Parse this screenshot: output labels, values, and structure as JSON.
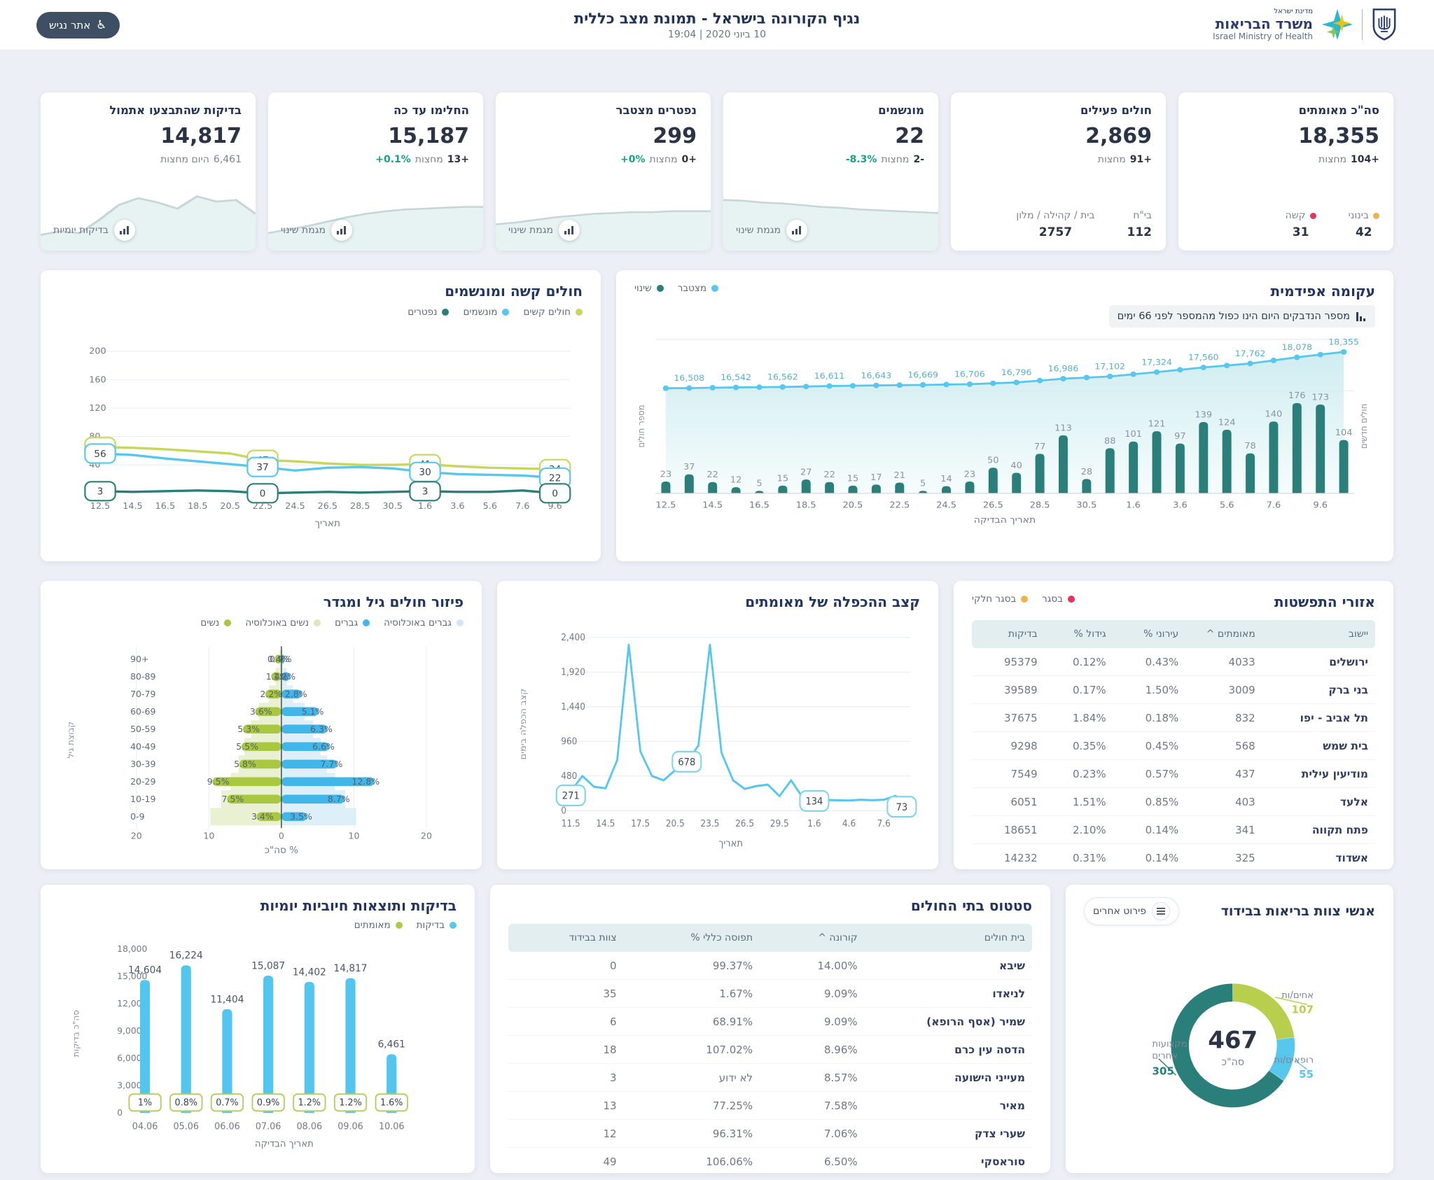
{
  "colors": {
    "bg": "#eceff5",
    "navy": "#21355e",
    "text_dark": "#2b3445",
    "text_gray": "#7b8494",
    "green_pos": "#12a385",
    "accent_teal": "#2a7f7a",
    "accent_blue": "#57c7ee",
    "accent_green": "#aec94a",
    "dot_orange": "#eeb44c",
    "dot_red": "#e8315b",
    "table_head": "#e3eef0"
  },
  "header": {
    "title": "נגיף הקורונה בישראל - תמונת מצב כללית",
    "datetime": "10 ביוני 2020 | 19:04",
    "accessibility_button": "אתר נגיש",
    "logo": {
      "line1": "מדינת ישראל",
      "line2": "משרד הבריאות",
      "line3": "Israel Ministry of Health"
    }
  },
  "stat_cards": [
    {
      "title": "סה\"כ מאומתים",
      "value": "18,355",
      "delta": {
        "count": "+104",
        "word": "מחצות"
      },
      "footer": [
        {
          "label": "בינוני",
          "value": "42",
          "dot": "#eeb44c"
        },
        {
          "label": "קשה",
          "value": "31",
          "dot": "#e8315b"
        }
      ]
    },
    {
      "title": "חולים פעילים",
      "value": "2,869",
      "delta": {
        "count": "+91",
        "word": "מחצות"
      },
      "footer": [
        {
          "label": "בי\"ח",
          "value": "112"
        },
        {
          "label": "בית / קהילה / מלון",
          "value": "2757"
        }
      ]
    },
    {
      "title": "מונשמים",
      "value": "22",
      "delta": {
        "count": "-2",
        "word": "מחצות",
        "pct": "-8.3%"
      },
      "link": "מגמת שינוי",
      "spark": [
        58,
        57,
        55,
        54,
        52,
        50,
        49,
        47,
        46,
        45,
        44,
        43
      ]
    },
    {
      "title": "נפטרים מצטבר",
      "value": "299",
      "delta": {
        "count": "+0",
        "word": "מחצות",
        "pct": "+0%"
      },
      "link": "מגמת שינוי",
      "spark": [
        30,
        32,
        35,
        38,
        40,
        42,
        43,
        44,
        44,
        45,
        45,
        45
      ]
    },
    {
      "title": "החלימו עד כה",
      "value": "15,187",
      "delta": {
        "count": "+13",
        "word": "מחצות",
        "pct": "+0.1%"
      },
      "link": "מגמת שינוי",
      "spark": [
        20,
        24,
        28,
        33,
        38,
        42,
        45,
        47,
        48,
        49,
        50,
        50
      ]
    },
    {
      "title": "בדיקות שהתבצעו אתמול",
      "value": "14,817",
      "delta": {
        "count": "6,461",
        "word": "היום מחצות"
      },
      "link": "בדיקות יומיות",
      "spark": [
        18,
        22,
        20,
        35,
        52,
        60,
        55,
        48,
        62,
        56,
        58,
        42
      ]
    }
  ],
  "chart_data": {
    "epi": {
      "type": "combo",
      "title": "עקומה אפידמית",
      "note": "מספר הנדבקים היום הינו כפול מהמספר לפני 66 ימים",
      "legend": [
        {
          "label": "מצטבר",
          "color": "#57c7ee"
        },
        {
          "label": "שינוי",
          "color": "#2a7f7a"
        }
      ],
      "xlabel": "תאריך הבדיקה",
      "ylabel_left": "מספר חולים",
      "ylabel_right": "חולים חדשים",
      "x_ticks": [
        "12.5",
        "14.5",
        "16.5",
        "18.5",
        "20.5",
        "22.5",
        "24.5",
        "26.5",
        "28.5",
        "30.5",
        "1.6",
        "3.6",
        "5.6",
        "7.6",
        "9.6"
      ],
      "bars": [
        23,
        37,
        22,
        12,
        5,
        15,
        27,
        22,
        15,
        17,
        21,
        5,
        14,
        23,
        50,
        40,
        77,
        113,
        28,
        88,
        101,
        121,
        97,
        139,
        124,
        78,
        140,
        176,
        173,
        104
      ],
      "bar_ylim": [
        0,
        200
      ],
      "line_values": [
        16500,
        16508,
        16525,
        16542,
        16552,
        16562,
        16587,
        16611,
        16627,
        16643,
        16656,
        16669,
        16688,
        16706,
        16751,
        16796,
        16891,
        16986,
        17044,
        17102,
        17213,
        17324,
        17442,
        17560,
        17661,
        17762,
        17920,
        18078,
        18217,
        18355
      ],
      "line_labels": [
        "16,508",
        "16,542",
        "16,562",
        "16,611",
        "16,643",
        "16,669",
        "16,706",
        "16,796",
        "16,986",
        "17,102",
        "17,324",
        "17,560",
        "17,762",
        "18,078",
        "18,355"
      ],
      "line_label_indices": [
        1,
        3,
        5,
        7,
        9,
        11,
        13,
        15,
        17,
        19,
        21,
        23,
        25,
        27,
        29
      ],
      "line_ylim": [
        16400,
        18500
      ]
    },
    "severe": {
      "type": "line",
      "title": "חולים קשה ומונשמים",
      "legend": [
        {
          "label": "חולים קשים",
          "color": "#c9d65c"
        },
        {
          "label": "מונשמים",
          "color": "#57c7ee"
        },
        {
          "label": "נפטרים",
          "color": "#2a7f7a"
        }
      ],
      "x_ticks": [
        "12.5",
        "14.5",
        "16.5",
        "18.5",
        "20.5",
        "22.5",
        "24.5",
        "26.5",
        "28.5",
        "30.5",
        "1.6",
        "3.6",
        "5.6",
        "7.6",
        "9.6"
      ],
      "xlabel": "תאריך",
      "y_ticks": [
        200,
        160,
        120,
        80,
        40
      ],
      "ylim": [
        0,
        210
      ],
      "series": [
        {
          "name": "חולים קשים",
          "color": "#c9d65c",
          "values": [
            65,
            64,
            62,
            59,
            56,
            47,
            45,
            42,
            40,
            40,
            41,
            38,
            36,
            35,
            34
          ],
          "badges": [
            {
              "i": 0,
              "v": "65"
            },
            {
              "i": 5,
              "v": "47"
            },
            {
              "i": 10,
              "v": "41"
            },
            {
              "i": 14,
              "v": "34"
            }
          ]
        },
        {
          "name": "מונשמים",
          "color": "#57c7ee",
          "values": [
            56,
            54,
            49,
            45,
            41,
            37,
            32,
            36,
            37,
            35,
            30,
            27,
            26,
            25,
            22
          ],
          "badges": [
            {
              "i": 0,
              "v": "56"
            },
            {
              "i": 5,
              "v": "37"
            },
            {
              "i": 10,
              "v": "30"
            },
            {
              "i": 14,
              "v": "22"
            }
          ]
        },
        {
          "name": "נפטרים",
          "color": "#2a7f7a",
          "values": [
            3,
            2,
            3,
            4,
            3,
            0,
            1,
            2,
            1,
            2,
            3,
            2,
            2,
            4,
            0
          ],
          "badges": [
            {
              "i": 0,
              "v": "3"
            },
            {
              "i": 5,
              "v": "0"
            },
            {
              "i": 10,
              "v": "3"
            },
            {
              "i": 14,
              "v": "0"
            }
          ]
        }
      ]
    },
    "pyramid": {
      "type": "bar-pyramid",
      "title": "פיזור חולים גיל ומגדר",
      "legend": [
        {
          "label": "גברים באוכלוסיה",
          "color": "#cfe7f6"
        },
        {
          "label": "גברים",
          "color": "#41b6e9"
        },
        {
          "label": "נשים באוכלוסיה",
          "color": "#dde8b9"
        },
        {
          "label": "נשים",
          "color": "#a9c83f"
        }
      ],
      "categories": [
        "+90",
        "80-89",
        "70-79",
        "60-69",
        "50-59",
        "40-49",
        "30-39",
        "20-29",
        "10-19",
        "0-9"
      ],
      "women": [
        0.9,
        1.4,
        2.2,
        3.6,
        5.3,
        5.5,
        5.8,
        9.5,
        7.5,
        3.4
      ],
      "men": [
        0.4,
        1.2,
        2.8,
        5.1,
        6.3,
        6.6,
        7.7,
        12.8,
        8.7,
        3.5
      ],
      "women_pop": [
        0.3,
        0.8,
        1.7,
        3.1,
        4.2,
        5.1,
        5.9,
        7.0,
        8.3,
        9.8
      ],
      "men_pop": [
        0.2,
        0.7,
        1.6,
        3.2,
        4.4,
        5.4,
        6.3,
        7.4,
        8.8,
        10.3
      ],
      "x_ticks": [
        "20",
        "10",
        "0",
        "10",
        "20"
      ],
      "xlim": [
        -20,
        20
      ],
      "xlabel": "% סה\"כ",
      "ylabel": "קבוצת גיל"
    },
    "doubling": {
      "type": "line",
      "title": "קצב ההכפלה של מאומתים",
      "ylabel": "קצב הכפלה בימים",
      "xlabel": "תאריך",
      "y_ticks": [
        "0",
        "480",
        "960",
        "1,440",
        "1,920",
        "2,400"
      ],
      "ylim": [
        0,
        2400
      ],
      "x_ticks": [
        "11.5",
        "14.5",
        "17.5",
        "20.5",
        "23.5",
        "26.5",
        "29.5",
        "1.6",
        "4.6",
        "7.6"
      ],
      "values": [
        271,
        480,
        330,
        310,
        700,
        2300,
        820,
        480,
        420,
        560,
        678,
        900,
        2300,
        800,
        420,
        300,
        340,
        360,
        200,
        420,
        180,
        134,
        148,
        143,
        140,
        150,
        144,
        150,
        205,
        73
      ],
      "badges": [
        {
          "i": 0,
          "v": "271"
        },
        {
          "i": 10,
          "v": "678"
        },
        {
          "i": 21,
          "v": "134"
        },
        {
          "i": 29,
          "v": "73"
        }
      ]
    },
    "tests": {
      "type": "bar",
      "title": "בדיקות ותוצאות חיוביות יומיות",
      "legend": [
        {
          "label": "בדיקות",
          "color": "#57c7ee"
        },
        {
          "label": "מאומתים",
          "color": "#aec94a"
        }
      ],
      "categories": [
        "04.06",
        "05.06",
        "06.06",
        "07.06",
        "08.06",
        "09.06",
        "10.06"
      ],
      "values": [
        14604,
        16224,
        11404,
        15087,
        14402,
        14817,
        6461
      ],
      "value_labels": [
        "14,604",
        "16,224",
        "11,404",
        "15,087",
        "14,402",
        "14,817",
        "6,461"
      ],
      "pct_badges": [
        "1%",
        "0.8%",
        "0.7%",
        "0.9%",
        "1.2%",
        "1.2%",
        "1.6%"
      ],
      "y_ticks": [
        "18,000",
        "15,000",
        "12,000",
        "9,000",
        "6,000",
        "3,000",
        "0"
      ],
      "ylim": [
        0,
        18000
      ],
      "ylabel": "סה\"כ בדיקות",
      "xlabel": "תאריך הבדיקה"
    },
    "donut": {
      "type": "pie",
      "title": "אנשי צוות בריאות בבידוד",
      "button": "פירוט אחרים",
      "center_value": "467",
      "center_label": "סה\"כ",
      "slices": [
        {
          "label": "אחים/ות",
          "value": 107,
          "color": "#b8cf4e"
        },
        {
          "label": "רופאים/ות",
          "value": 55,
          "color": "#57c7ee"
        },
        {
          "label": "מקצועות אחרים",
          "value": 305,
          "color": "#2a7f7a"
        }
      ]
    }
  },
  "spread_table": {
    "title": "אזורי התפשטות",
    "legend": [
      {
        "label": "בסגר",
        "color": "#e8315b"
      },
      {
        "label": "בסגר חלקי",
        "color": "#eeb44c"
      }
    ],
    "headers": [
      "יישוב",
      "^ מאומתים",
      "% עירוני",
      "% גידול",
      "בדיקות"
    ],
    "rows": [
      [
        "ירושלים",
        "4033",
        "0.43%",
        "0.12%",
        "95379"
      ],
      [
        "בני ברק",
        "3009",
        "1.50%",
        "0.17%",
        "39589"
      ],
      [
        "תל אביב - יפו",
        "832",
        "0.18%",
        "1.84%",
        "37675"
      ],
      [
        "בית שמש",
        "568",
        "0.45%",
        "0.35%",
        "9298"
      ],
      [
        "מודיעין עילית",
        "437",
        "0.57%",
        "0.23%",
        "7549"
      ],
      [
        "אלעד",
        "403",
        "0.85%",
        "1.51%",
        "6051"
      ],
      [
        "פתח תקווה",
        "341",
        "0.14%",
        "2.10%",
        "18651"
      ],
      [
        "אשדוד",
        "325",
        "0.14%",
        "0.31%",
        "14232"
      ]
    ]
  },
  "hospitals_table": {
    "title": "סטטוס בתי החולים",
    "headers": [
      "בית חולים",
      "^ קורונה",
      "% תפוסה כללי",
      "צוות בבידוד"
    ],
    "rows": [
      [
        "שיבא",
        "14.00%",
        "99.37%",
        "0"
      ],
      [
        "לניאדו",
        "9.09%",
        "1.67%",
        "35"
      ],
      [
        "שמיר (אסף הרופא)",
        "9.09%",
        "68.91%",
        "6"
      ],
      [
        "הדסה עין כרם",
        "8.96%",
        "107.02%",
        "18"
      ],
      [
        "מעייני הישועה",
        "8.57%",
        "לא ידוע",
        "3"
      ],
      [
        "מאיר",
        "7.58%",
        "77.25%",
        "13"
      ],
      [
        "שערי צדק",
        "7.06%",
        "96.31%",
        "12"
      ],
      [
        "סוראסקי",
        "6.50%",
        "106.06%",
        "49"
      ]
    ]
  }
}
